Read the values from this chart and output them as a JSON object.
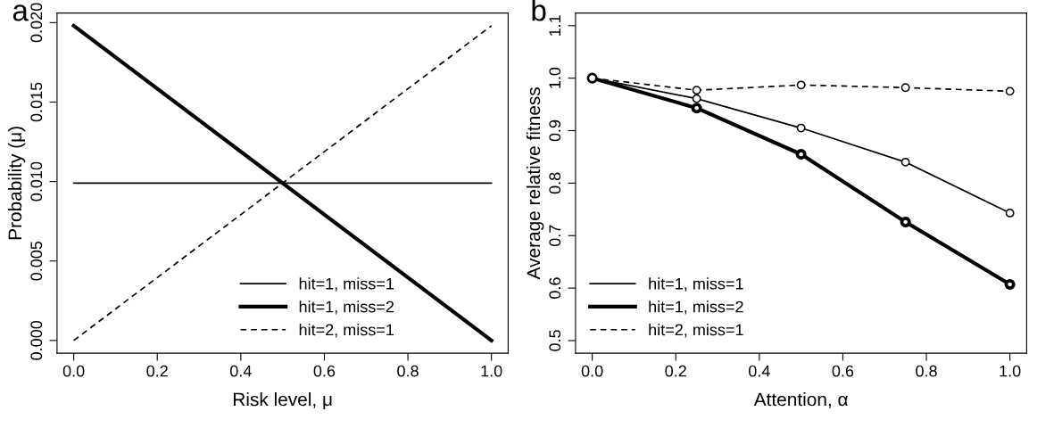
{
  "chart_data": [
    {
      "type": "line",
      "title": "a",
      "xlabel": "Risk level, μ",
      "ylabel": "Probability (μ)",
      "x": [
        0,
        1
      ],
      "series": [
        {
          "name": "hit=1, miss=1",
          "color": "#000000",
          "values": [
            0.0099,
            0.0099
          ],
          "line_style": "solid"
        },
        {
          "name": "hit=1, miss=2",
          "color": "#000000",
          "values": [
            0.0198,
            0.0
          ],
          "line_style": "solid"
        },
        {
          "name": "hit=2, miss=1",
          "color": "#000000",
          "values": [
            0.0,
            0.0198
          ],
          "line_style": "dashed"
        }
      ],
      "xlim": [
        -0.04,
        1.04
      ],
      "ylim": [
        -0.0008,
        0.0206
      ],
      "xticks": [
        {
          "value": 0,
          "label": "0.0"
        },
        {
          "value": 0.2,
          "label": "0.2"
        },
        {
          "value": 0.4,
          "label": "0.4"
        },
        {
          "value": 0.6,
          "label": "0.6"
        },
        {
          "value": 0.8,
          "label": "0.8"
        },
        {
          "value": 1,
          "label": "1.0"
        }
      ],
      "yticks": [
        {
          "value": 0,
          "label": "0.000"
        },
        {
          "value": 0.005,
          "label": "0.005"
        },
        {
          "value": 0.01,
          "label": "0.010"
        },
        {
          "value": 0.015,
          "label": "0.015"
        },
        {
          "value": 0.02,
          "label": "0.020"
        }
      ],
      "legend": "bottom right",
      "grid": false,
      "marker": "none"
    },
    {
      "type": "line",
      "title": "b",
      "xlabel": "Attention, α",
      "ylabel": "Average relative fitness",
      "x": [
        0,
        0.25,
        0.5,
        0.75,
        1
      ],
      "series": [
        {
          "name": "hit=1, miss=1",
          "color": "#000000",
          "values": [
            1.0,
            0.961,
            0.905,
            0.84,
            0.743
          ],
          "line_style": "solid"
        },
        {
          "name": "hit=1, miss=2",
          "color": "#000000",
          "values": [
            1.0,
            0.943,
            0.855,
            0.726,
            0.607
          ],
          "line_style": "solid"
        },
        {
          "name": "hit=2, miss=1",
          "color": "#000000",
          "values": [
            1.0,
            0.977,
            0.987,
            0.982,
            0.975
          ],
          "line_style": "dashed"
        }
      ],
      "xlim": [
        -0.04,
        1.04
      ],
      "ylim": [
        0.476,
        1.124
      ],
      "xticks": [
        {
          "value": 0,
          "label": "0.0"
        },
        {
          "value": 0.2,
          "label": "0.2"
        },
        {
          "value": 0.4,
          "label": "0.4"
        },
        {
          "value": 0.6,
          "label": "0.6"
        },
        {
          "value": 0.8,
          "label": "0.8"
        },
        {
          "value": 1,
          "label": "1.0"
        }
      ],
      "yticks": [
        0.5,
        0.6,
        0.7,
        0.8,
        0.9,
        {
          "value": 1.0,
          "label": "1.0"
        },
        1.1
      ],
      "legend": "bottom left",
      "grid": false,
      "marker": "circle"
    }
  ]
}
